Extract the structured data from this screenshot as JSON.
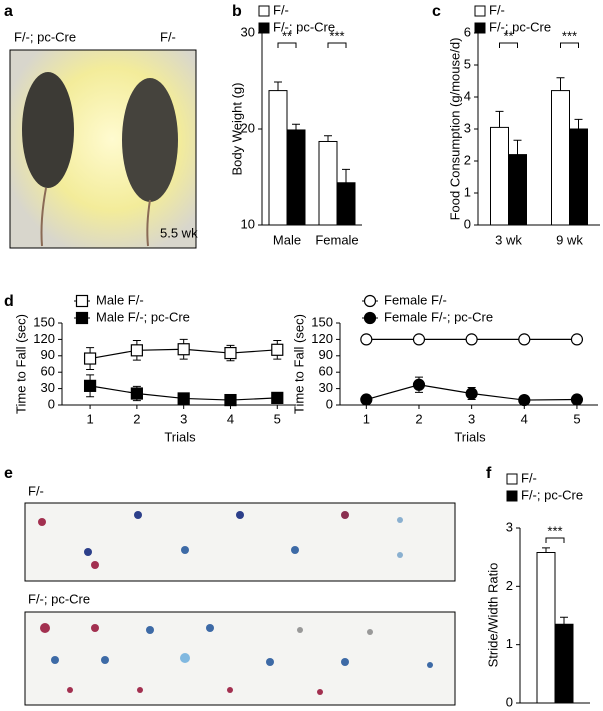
{
  "panel_a": {
    "label": "a",
    "genotypes": [
      "F/-; pc-Cre",
      "F/-"
    ],
    "age": "5.5 wk"
  },
  "panel_e": {
    "label": "e",
    "rows": [
      "F/-",
      "F/-; pc-Cre"
    ]
  },
  "chart_data": [
    {
      "panel": "b",
      "type": "bar",
      "ylabel": "Body Weight (g)",
      "categories": [
        "Male",
        "Female"
      ],
      "series": [
        {
          "name": "F/-",
          "color": "#ffffff",
          "values": [
            24.0,
            18.7
          ],
          "errors": [
            0.9,
            0.6
          ]
        },
        {
          "name": "F/-; pc-Cre",
          "color": "#000000",
          "values": [
            19.9,
            14.4
          ],
          "errors": [
            0.6,
            1.4
          ]
        }
      ],
      "ylim": [
        10,
        30
      ],
      "yticks": [
        10,
        20,
        30
      ],
      "significance": [
        "**",
        "***"
      ]
    },
    {
      "panel": "c",
      "type": "bar",
      "ylabel": "Food Consumption (g/mouse/d)",
      "categories": [
        "3 wk",
        "9 wk"
      ],
      "series": [
        {
          "name": "F/-",
          "color": "#ffffff",
          "values": [
            3.05,
            4.2
          ],
          "errors": [
            0.5,
            0.4
          ]
        },
        {
          "name": "F/-; pc-Cre",
          "color": "#000000",
          "values": [
            2.2,
            3.0
          ],
          "errors": [
            0.45,
            0.3
          ]
        }
      ],
      "ylim": [
        0,
        6
      ],
      "yticks": [
        0,
        1,
        2,
        3,
        4,
        5,
        6
      ],
      "significance": [
        "**",
        "***"
      ]
    },
    {
      "panel": "d",
      "type": "line",
      "xlabel": "Trials",
      "ylabel": "Time to Fall (sec)",
      "x": [
        1,
        2,
        3,
        4,
        5
      ],
      "series": [
        {
          "name": "Male F/-",
          "color": "#ffffff",
          "marker": "square",
          "values": [
            85,
            100,
            102,
            95,
            101
          ],
          "errors": [
            20,
            18,
            18,
            14,
            17
          ]
        },
        {
          "name": "Male F/-; pc-Cre",
          "color": "#000000",
          "marker": "square",
          "values": [
            35,
            21,
            12,
            9,
            13
          ],
          "errors": [
            20,
            13,
            8,
            3,
            8
          ]
        }
      ],
      "xlim": [
        0.4,
        5.4
      ],
      "xticks": [
        1,
        2,
        3,
        4,
        5
      ],
      "ylim": [
        0,
        150
      ],
      "yticks": [
        0,
        30,
        60,
        90,
        120,
        150
      ]
    },
    {
      "type": "line",
      "xlabel": "Trials",
      "ylabel": "Time to Fall (sec)",
      "x": [
        1,
        2,
        3,
        4,
        5
      ],
      "series": [
        {
          "name": "Female F/-",
          "color": "#ffffff",
          "marker": "circle",
          "values": [
            120,
            120,
            120,
            120,
            120
          ],
          "errors": [
            0,
            0,
            0,
            0,
            0
          ]
        },
        {
          "name": "Female F/-; pc-Cre",
          "color": "#000000",
          "marker": "circle",
          "values": [
            10,
            37,
            21,
            9,
            10
          ],
          "errors": [
            0,
            14,
            11,
            0,
            0
          ]
        }
      ],
      "xlim": [
        0.5,
        5.4
      ],
      "xticks": [
        1,
        2,
        3,
        4,
        5
      ],
      "ylim": [
        0,
        150
      ],
      "yticks": [
        0,
        30,
        60,
        90,
        120,
        150
      ]
    },
    {
      "panel": "f",
      "type": "bar",
      "ylabel": "Stride/Width Ratio",
      "categories": [
        null
      ],
      "series": [
        {
          "name": "F/-",
          "color": "#ffffff",
          "values": [
            2.58
          ],
          "errors": [
            0.08
          ]
        },
        {
          "name": "F/-; pc-Cre",
          "color": "#000000",
          "values": [
            1.35
          ],
          "errors": [
            0.12
          ]
        }
      ],
      "ylim": [
        0,
        3
      ],
      "yticks": [
        0,
        1,
        2,
        3
      ],
      "significance": [
        "***"
      ]
    }
  ]
}
